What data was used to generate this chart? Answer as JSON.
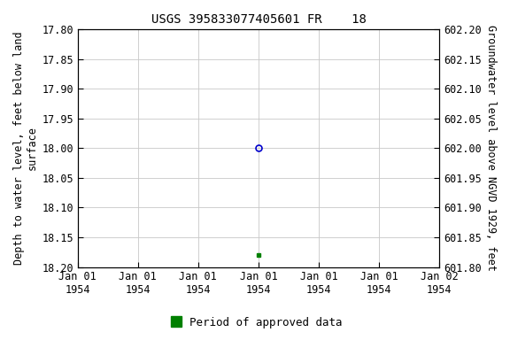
{
  "title": "USGS 395833077405601 FR    18",
  "x_data_blue": [
    3.0
  ],
  "y_data_blue": [
    18.0
  ],
  "x_data_green": [
    3.0
  ],
  "y_data_green": [
    18.18
  ],
  "xlim": [
    0,
    6
  ],
  "ylim_left": [
    18.2,
    17.8
  ],
  "ylim_right": [
    601.8,
    602.2
  ],
  "yticks_left": [
    17.8,
    17.85,
    17.9,
    17.95,
    18.0,
    18.05,
    18.1,
    18.15,
    18.2
  ],
  "yticks_right": [
    601.8,
    601.85,
    601.9,
    601.95,
    602.0,
    602.05,
    602.1,
    602.15,
    602.2
  ],
  "ytick_labels_left": [
    "17.80",
    "17.85",
    "17.90",
    "17.95",
    "18.00",
    "18.05",
    "18.10",
    "18.15",
    "18.20"
  ],
  "ytick_labels_right": [
    "601.80",
    "601.85",
    "601.90",
    "601.95",
    "602.00",
    "602.05",
    "602.10",
    "602.15",
    "602.20"
  ],
  "xtick_positions": [
    0,
    1,
    2,
    3,
    4,
    5,
    6
  ],
  "xtick_labels": [
    "Jan 01\n1954",
    "Jan 01\n1954",
    "Jan 01\n1954",
    "Jan 01\n1954",
    "Jan 01\n1954",
    "Jan 01\n1954",
    "Jan 02\n1954"
  ],
  "ylabel_left": "Depth to water level, feet below land\nsurface",
  "ylabel_right": "Groundwater level above NGVD 1929, feet",
  "legend_label": "Period of approved data",
  "bg_color": "#ffffff",
  "grid_color": "#c8c8c8",
  "blue_marker_color": "#0000cc",
  "green_marker_color": "#008000",
  "title_fontsize": 10,
  "axis_label_fontsize": 8.5,
  "tick_fontsize": 8.5,
  "legend_fontsize": 9
}
